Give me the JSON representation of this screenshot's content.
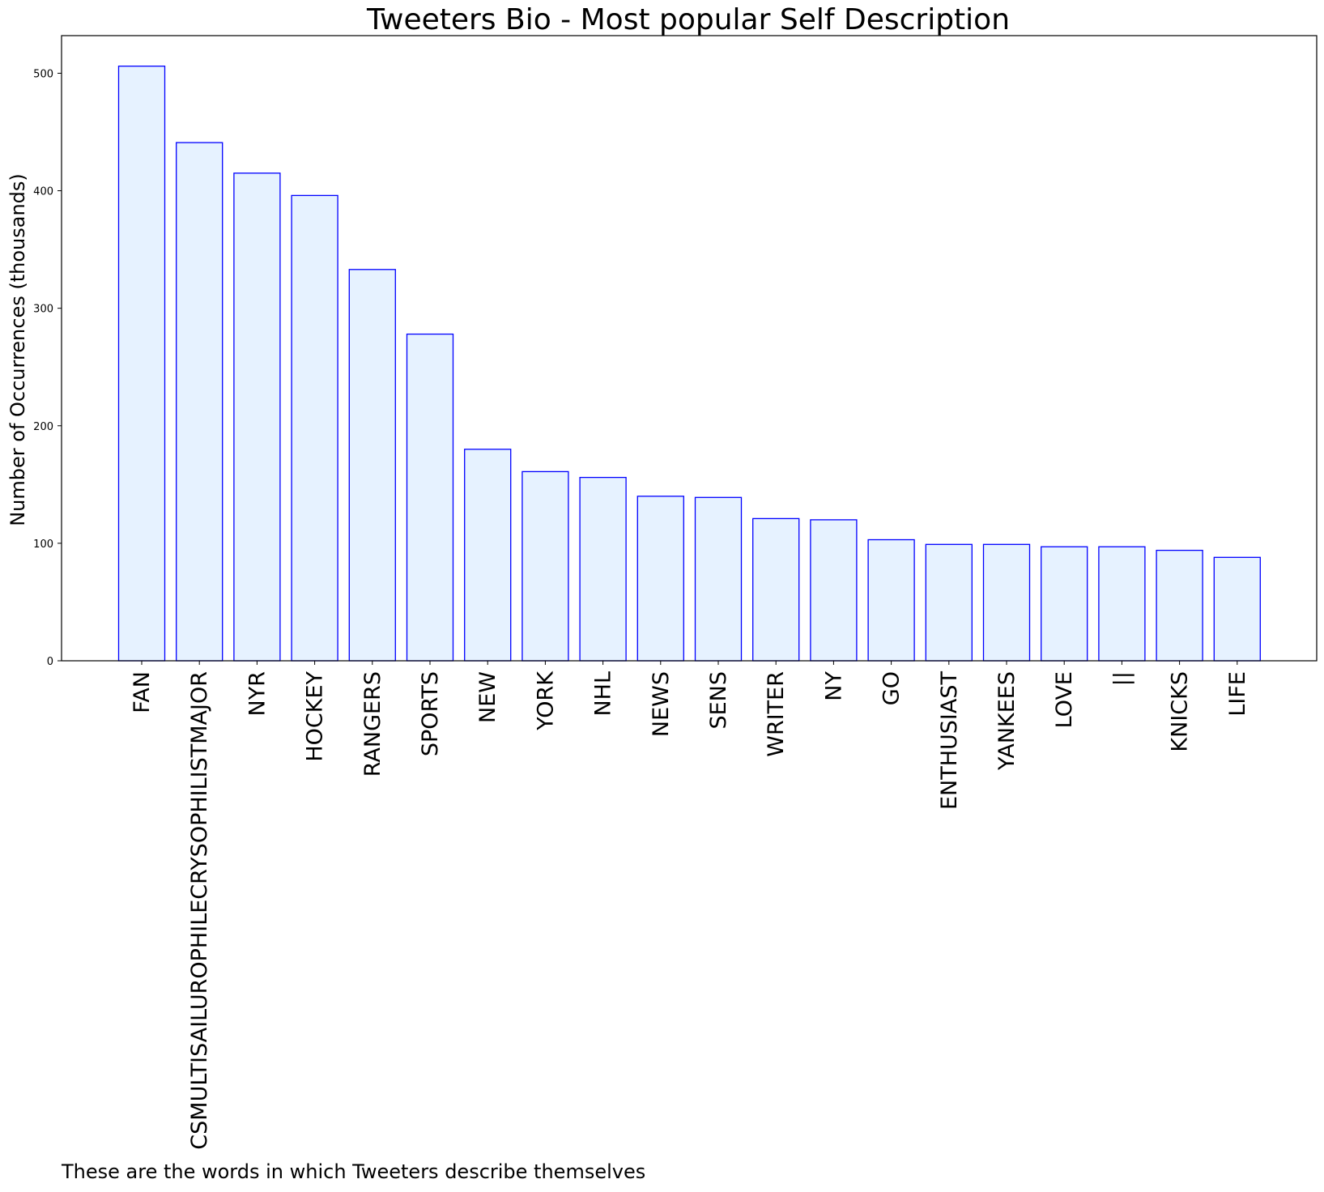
{
  "chart_data": {
    "type": "bar",
    "title": "Tweeters Bio - Most popular Self Description",
    "ylabel": "Number of Occurrences (thousands)",
    "xlabel": "",
    "categories": [
      "FAN",
      "CSMULTISAILUROPHILECRYSOPHILISTMAJOR",
      "NYR",
      "HOCKEY",
      "RANGERS",
      "SPORTS",
      "NEW",
      "YORK",
      "NHL",
      "NEWS",
      "SENS",
      "WRITER",
      "NY",
      "GO",
      "ENTHUSIAST",
      "YANKEES",
      "LOVE",
      "||",
      "KNICKS",
      "LIFE"
    ],
    "values": [
      506,
      441,
      415,
      396,
      333,
      278,
      180,
      161,
      156,
      140,
      139,
      121,
      120,
      103,
      99,
      99,
      97,
      97,
      94,
      88
    ],
    "ylim": [
      0,
      532
    ],
    "yticks": [
      0,
      100,
      200,
      300,
      400,
      500
    ],
    "grid": false,
    "legend": "none",
    "colors": {
      "bar_fill": "#e6f2ff",
      "bar_edge": "#0000ff",
      "axis": "#000000",
      "text": "#000000"
    }
  },
  "caption": "These are the words in which Tweeters describe themselves"
}
